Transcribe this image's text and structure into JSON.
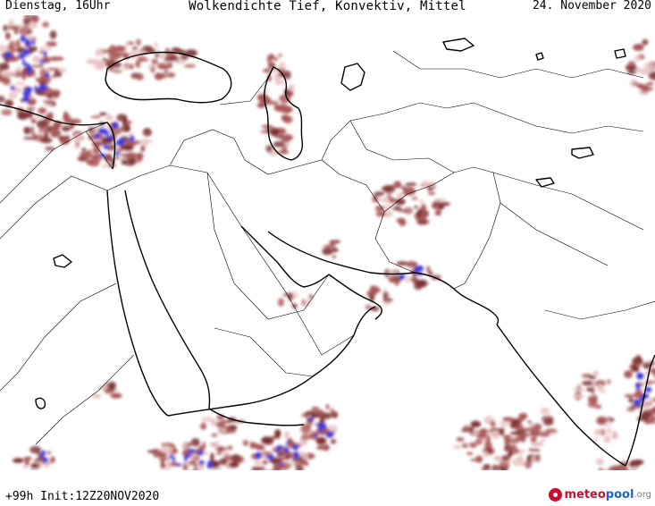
{
  "header": {
    "left": "Dienstag, 16Uhr",
    "center": "Wolkendichte  Tief, Konvektiv, Mittel",
    "right": "24. November 2020"
  },
  "footer": {
    "left": "+99h Init:12Z20NOV2020"
  },
  "logo": {
    "part1": "meteo",
    "part2": "pool",
    "part3": ".org"
  },
  "map": {
    "type": "cloud-density",
    "colors": {
      "background": "#ffffff",
      "coast": "#000000",
      "border": "#000000",
      "cloud_light": "#e9c3c3",
      "cloud_mid": "#a85555",
      "cloud_dark": "#7a3030",
      "cloud_dense": "#3b3bd8"
    }
  }
}
